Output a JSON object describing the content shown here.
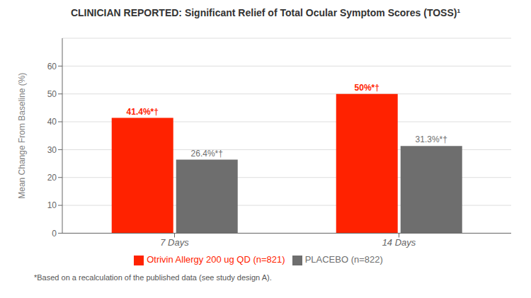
{
  "chart_data": {
    "type": "bar",
    "title": "CLINICIAN REPORTED: Significant Relief of Total Ocular Symptom Scores (TOSS)¹",
    "y_label": "Mean Change From Baseline (%)",
    "categories": [
      "7 Days",
      "14 Days"
    ],
    "series": [
      {
        "name": "Otrivin Allergy 200 ug QD (n=821)",
        "color": "#ff2200",
        "values": [
          41.4,
          50.0
        ],
        "value_labels": [
          "41.4%*†",
          "50%*†"
        ]
      },
      {
        "name": "PLACEBO (n=822)",
        "color": "#6e6e6e",
        "values": [
          26.4,
          31.3
        ],
        "value_labels": [
          "26.4%*†",
          "31.3%*†"
        ]
      }
    ],
    "ylim": [
      0,
      70
    ],
    "yticks": [
      0,
      10,
      20,
      30,
      40,
      50,
      60
    ],
    "grid": true,
    "legend": "bottom",
    "data_labels": true,
    "footnote": "*Based on a recalculation of the published data (see study design A)."
  }
}
